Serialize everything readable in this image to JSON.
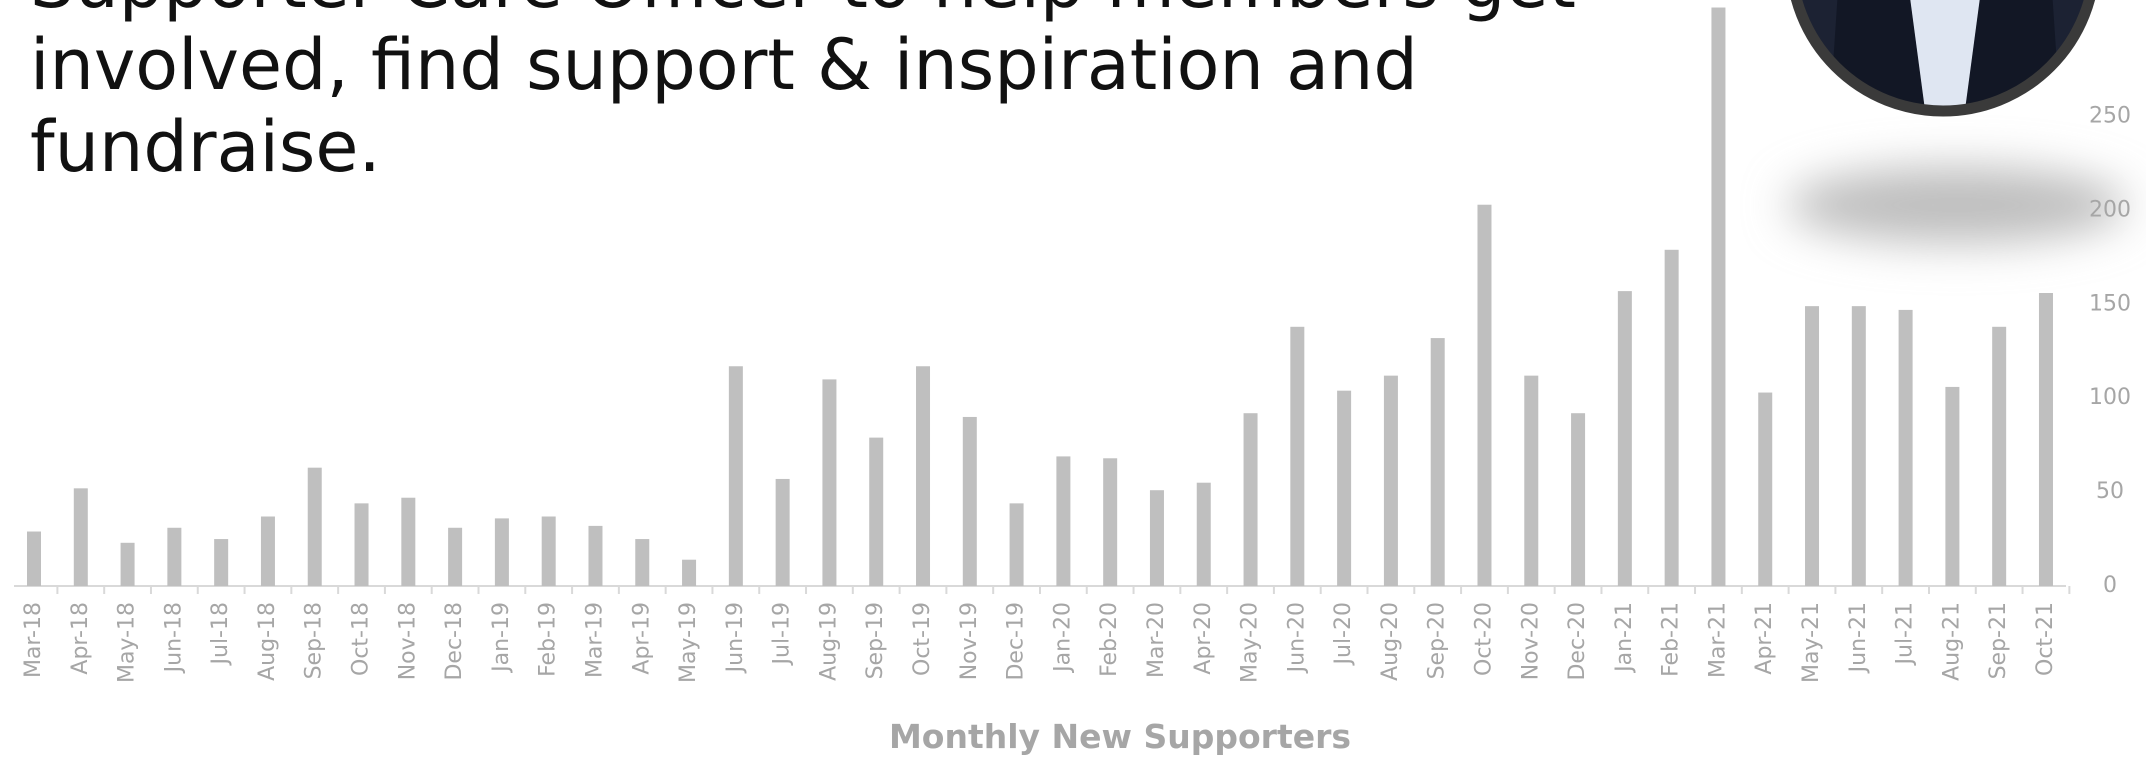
{
  "intro": "Supporter Care Officer to help members get involved, find support & inspiration and fundraise.",
  "chart_data": {
    "type": "bar",
    "title": "Monthly New Supporters",
    "categories": [
      "Mar-18",
      "Apr-18",
      "May-18",
      "Jun-18",
      "Jul-18",
      "Aug-18",
      "Sep-18",
      "Oct-18",
      "Nov-18",
      "Dec-18",
      "Jan-19",
      "Feb-19",
      "Mar-19",
      "Apr-19",
      "May-19",
      "Jun-19",
      "Jul-19",
      "Aug-19",
      "Sep-19",
      "Oct-19",
      "Nov-19",
      "Dec-19",
      "Jan-20",
      "Feb-20",
      "Mar-20",
      "Apr-20",
      "May-20",
      "Jun-20",
      "Jul-20",
      "Aug-20",
      "Sep-20",
      "Oct-20",
      "Nov-20",
      "Dec-20",
      "Jan-21",
      "Feb-21",
      "Mar-21",
      "Apr-21",
      "May-21",
      "Jun-21",
      "Jul-21",
      "Aug-21",
      "Sep-21",
      "Oct-21"
    ],
    "values": [
      29,
      52,
      23,
      31,
      25,
      37,
      63,
      44,
      47,
      31,
      36,
      37,
      32,
      25,
      14,
      117,
      57,
      110,
      79,
      117,
      90,
      44,
      69,
      68,
      51,
      55,
      92,
      138,
      104,
      112,
      132,
      203,
      112,
      92,
      157,
      179,
      308,
      103,
      149,
      149,
      147,
      106,
      138,
      156
    ],
    "color": "#bfbfbf",
    "ylim": [
      0,
      312
    ],
    "yticks": [
      0,
      50,
      100,
      150,
      200,
      250
    ],
    "grid": false
  }
}
